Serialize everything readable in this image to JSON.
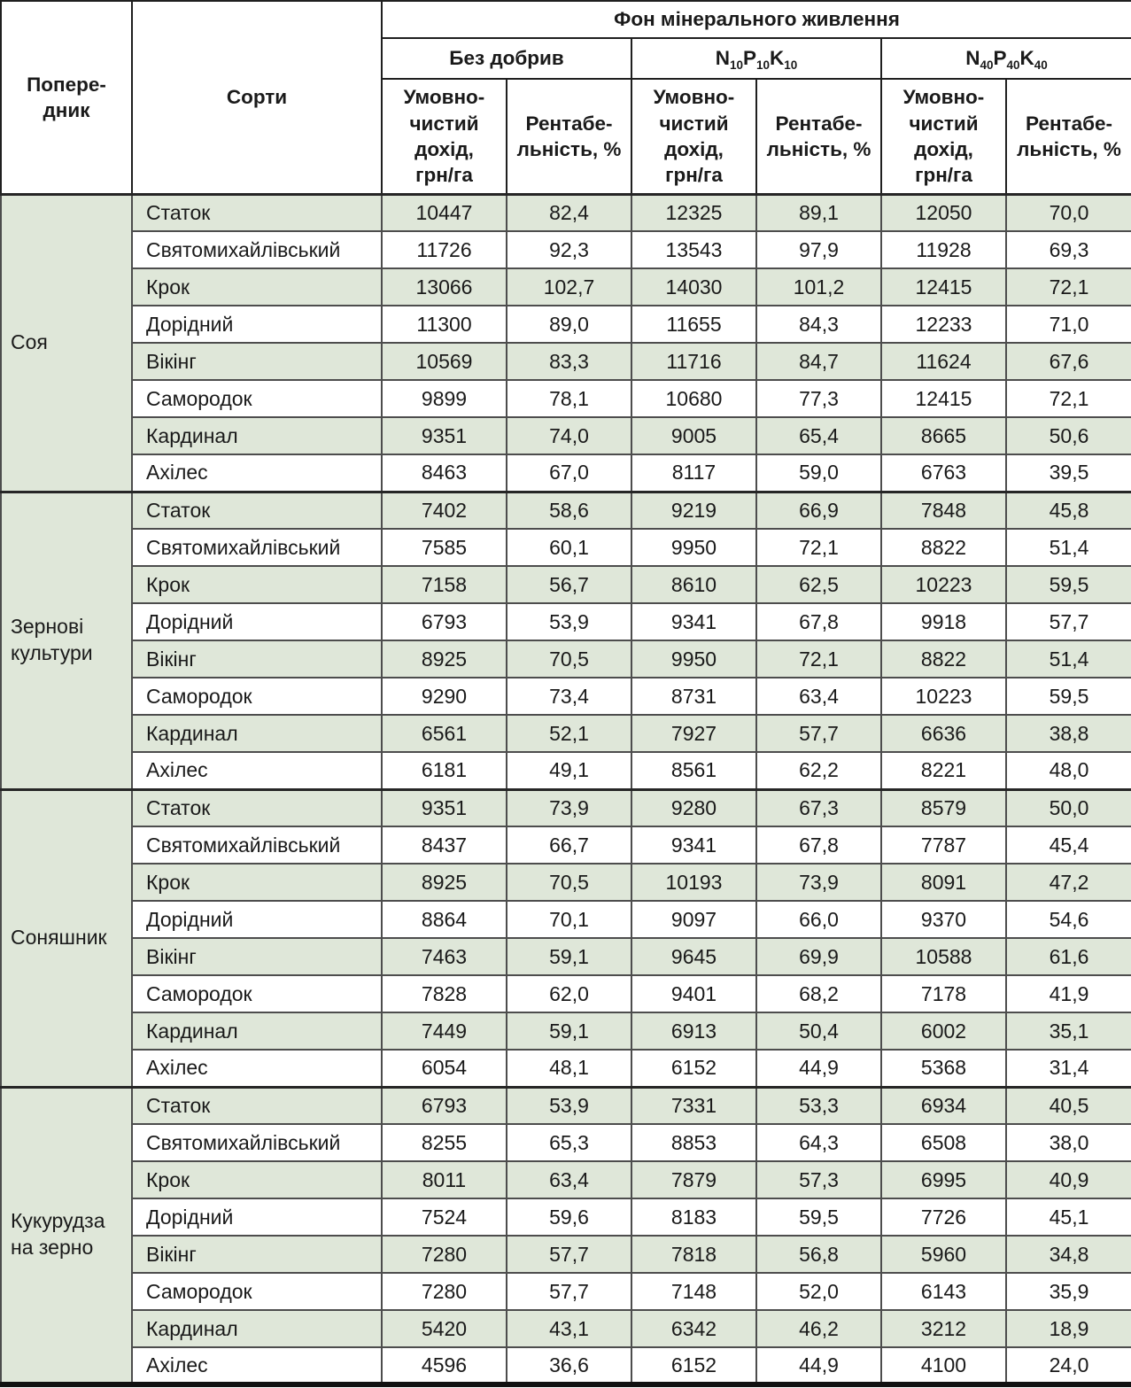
{
  "colors": {
    "row_stripe_green": "#dfe7d9",
    "grid_line": "#4d4d4d",
    "header_line": "#1f1f1f"
  },
  "header": {
    "predecessor": "Попере-\nдник",
    "varieties": "Сорти",
    "nutrition_title": "Фон мінерального живлення",
    "backgrounds": [
      {
        "label": "Без добрив"
      },
      {
        "label": "N10P10K10",
        "parts": [
          {
            "el": "N",
            "sub": "10"
          },
          {
            "el": "P",
            "sub": "10"
          },
          {
            "el": "K",
            "sub": "10"
          }
        ]
      },
      {
        "label": "N40P40K40",
        "parts": [
          {
            "el": "N",
            "sub": "40"
          },
          {
            "el": "P",
            "sub": "40"
          },
          {
            "el": "K",
            "sub": "40"
          }
        ]
      }
    ],
    "metric_income": "Умовно-\nчистий\nдохід,\nгрн/га",
    "metric_profitability": "Рентабе-\nльність, %"
  },
  "groups": [
    {
      "predecessor": "Соя",
      "rows": [
        {
          "variety": "Статок",
          "values": [
            "10447",
            "82,4",
            "12325",
            "89,1",
            "12050",
            "70,0"
          ]
        },
        {
          "variety": "Святомихайлівський",
          "values": [
            "11726",
            "92,3",
            "13543",
            "97,9",
            "11928",
            "69,3"
          ]
        },
        {
          "variety": "Крок",
          "values": [
            "13066",
            "102,7",
            "14030",
            "101,2",
            "12415",
            "72,1"
          ]
        },
        {
          "variety": "Дорідний",
          "values": [
            "11300",
            "89,0",
            "11655",
            "84,3",
            "12233",
            "71,0"
          ]
        },
        {
          "variety": "Вікінг",
          "values": [
            "10569",
            "83,3",
            "11716",
            "84,7",
            "11624",
            "67,6"
          ]
        },
        {
          "variety": "Самородок",
          "values": [
            "9899",
            "78,1",
            "10680",
            "77,3",
            "12415",
            "72,1"
          ]
        },
        {
          "variety": "Кардинал",
          "values": [
            "9351",
            "74,0",
            "9005",
            "65,4",
            "8665",
            "50,6"
          ]
        },
        {
          "variety": "Ахілес",
          "values": [
            "8463",
            "67,0",
            "8117",
            "59,0",
            "6763",
            "39,5"
          ]
        }
      ]
    },
    {
      "predecessor": "Зернові\nкультури",
      "rows": [
        {
          "variety": "Статок",
          "values": [
            "7402",
            "58,6",
            "9219",
            "66,9",
            "7848",
            "45,8"
          ]
        },
        {
          "variety": "Святомихайлівський",
          "values": [
            "7585",
            "60,1",
            "9950",
            "72,1",
            "8822",
            "51,4"
          ]
        },
        {
          "variety": "Крок",
          "values": [
            "7158",
            "56,7",
            "8610",
            "62,5",
            "10223",
            "59,5"
          ]
        },
        {
          "variety": "Дорідний",
          "values": [
            "6793",
            "53,9",
            "9341",
            "67,8",
            "9918",
            "57,7"
          ]
        },
        {
          "variety": "Вікінг",
          "values": [
            "8925",
            "70,5",
            "9950",
            "72,1",
            "8822",
            "51,4"
          ]
        },
        {
          "variety": "Самородок",
          "values": [
            "9290",
            "73,4",
            "8731",
            "63,4",
            "10223",
            "59,5"
          ]
        },
        {
          "variety": "Кардинал",
          "values": [
            "6561",
            "52,1",
            "7927",
            "57,7",
            "6636",
            "38,8"
          ]
        },
        {
          "variety": "Ахілес",
          "values": [
            "6181",
            "49,1",
            "8561",
            "62,2",
            "8221",
            "48,0"
          ]
        }
      ]
    },
    {
      "predecessor": "Соняшник",
      "rows": [
        {
          "variety": "Статок",
          "values": [
            "9351",
            "73,9",
            "9280",
            "67,3",
            "8579",
            "50,0"
          ]
        },
        {
          "variety": "Святомихайлівський",
          "values": [
            "8437",
            "66,7",
            "9341",
            "67,8",
            "7787",
            "45,4"
          ]
        },
        {
          "variety": "Крок",
          "values": [
            "8925",
            "70,5",
            "10193",
            "73,9",
            "8091",
            "47,2"
          ]
        },
        {
          "variety": "Дорідний",
          "values": [
            "8864",
            "70,1",
            "9097",
            "66,0",
            "9370",
            "54,6"
          ]
        },
        {
          "variety": "Вікінг",
          "values": [
            "7463",
            "59,1",
            "9645",
            "69,9",
            "10588",
            "61,6"
          ]
        },
        {
          "variety": "Самородок",
          "values": [
            "7828",
            "62,0",
            "9401",
            "68,2",
            "7178",
            "41,9"
          ]
        },
        {
          "variety": "Кардинал",
          "values": [
            "7449",
            "59,1",
            "6913",
            "50,4",
            "6002",
            "35,1"
          ]
        },
        {
          "variety": "Ахілес",
          "values": [
            "6054",
            "48,1",
            "6152",
            "44,9",
            "5368",
            "31,4"
          ]
        }
      ]
    },
    {
      "predecessor": "Кукурудза\nна зерно",
      "rows": [
        {
          "variety": "Статок",
          "values": [
            "6793",
            "53,9",
            "7331",
            "53,3",
            "6934",
            "40,5"
          ]
        },
        {
          "variety": "Святомихайлівський",
          "values": [
            "8255",
            "65,3",
            "8853",
            "64,3",
            "6508",
            "38,0"
          ]
        },
        {
          "variety": "Крок",
          "values": [
            "8011",
            "63,4",
            "7879",
            "57,3",
            "6995",
            "40,9"
          ]
        },
        {
          "variety": "Дорідний",
          "values": [
            "7524",
            "59,6",
            "8183",
            "59,5",
            "7726",
            "45,1"
          ]
        },
        {
          "variety": "Вікінг",
          "values": [
            "7280",
            "57,7",
            "7818",
            "56,8",
            "5960",
            "34,8"
          ]
        },
        {
          "variety": "Самородок",
          "values": [
            "7280",
            "57,7",
            "7148",
            "52,0",
            "6143",
            "35,9"
          ]
        },
        {
          "variety": "Кардинал",
          "values": [
            "5420",
            "43,1",
            "6342",
            "46,2",
            "3212",
            "18,9"
          ]
        },
        {
          "variety": "Ахілес",
          "values": [
            "4596",
            "36,6",
            "6152",
            "44,9",
            "4100",
            "24,0"
          ]
        }
      ]
    }
  ]
}
